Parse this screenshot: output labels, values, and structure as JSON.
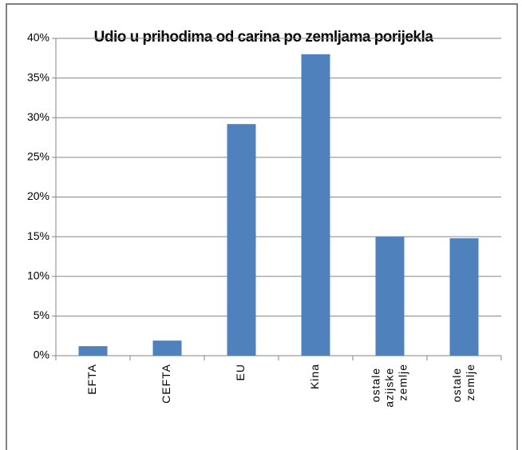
{
  "chart_data": {
    "type": "bar",
    "title": "Udio u prihodima od carina po zemljama porijekla",
    "categories": [
      "EFTA",
      "CEFTA",
      "EU",
      "Kina",
      "ostale azijske zemlje",
      "ostale zemlje"
    ],
    "values": [
      1.2,
      1.9,
      29.2,
      38,
      15,
      14.8
    ],
    "color": "#4f81bd",
    "ylim": [
      0,
      40
    ],
    "yticks": [
      {
        "value": 0,
        "label": "0%"
      },
      {
        "value": 5,
        "label": "5%"
      },
      {
        "value": 10,
        "label": "10%"
      },
      {
        "value": 15,
        "label": "15%"
      },
      {
        "value": 20,
        "label": "20%"
      },
      {
        "value": 25,
        "label": "25%"
      },
      {
        "value": 30,
        "label": "30%"
      },
      {
        "value": 35,
        "label": "35%"
      },
      {
        "value": 40,
        "label": "40%"
      }
    ],
    "grid": true
  }
}
